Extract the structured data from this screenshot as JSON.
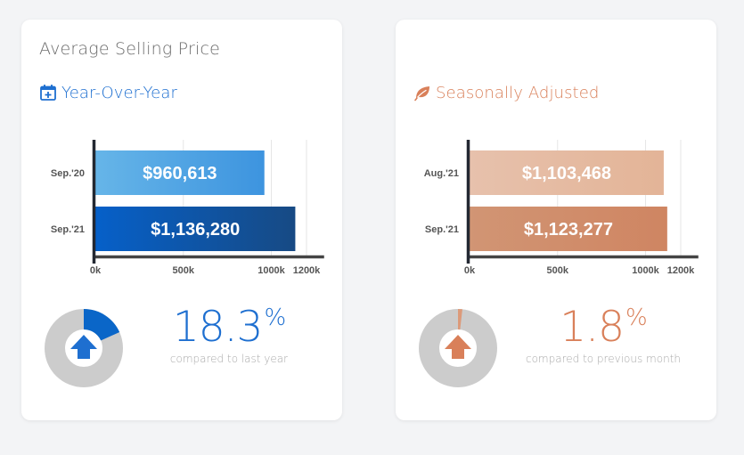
{
  "colors": {
    "background": "#f3f4f6",
    "card": "#ffffff",
    "blue_accent": "#1e6fd0",
    "orange_accent": "#d9805a",
    "donut_track": "#cccccc"
  },
  "cards": [
    {
      "title": "Average Selling Price",
      "subtitle": "Year-Over-Year",
      "subtitle_icon": "calendar-plus-icon",
      "stat": {
        "value": "18.3",
        "unit": "%",
        "caption": "compared to last year",
        "direction": "up",
        "direction_icon": "arrow-up-icon",
        "fraction": 0.183
      }
    },
    {
      "title": "",
      "subtitle": "Seasonally Adjusted",
      "subtitle_icon": "leaf-icon",
      "stat": {
        "value": "1.8",
        "unit": "%",
        "caption": "compared to previous month",
        "direction": "up",
        "direction_icon": "arrow-up-icon",
        "fraction": 0.018
      }
    }
  ],
  "chart_data": [
    {
      "type": "bar",
      "orientation": "horizontal",
      "title": "Year-Over-Year",
      "categories": [
        "Sep.'20",
        "Sep.'21"
      ],
      "values": [
        960613,
        1136280
      ],
      "value_labels": [
        "$960,613",
        "$1,136,280"
      ],
      "bar_colors": [
        [
          "#66b5e8",
          "#3d94df"
        ],
        [
          "#0660c9",
          "#174a84"
        ]
      ],
      "xticks": [
        0,
        500000,
        1000000,
        1200000
      ],
      "xtick_labels": [
        "0k",
        "500k",
        "1000k",
        "1200k"
      ],
      "xlim": [
        0,
        1300000
      ],
      "grid": true,
      "xlabel": "",
      "ylabel": ""
    },
    {
      "type": "bar",
      "orientation": "horizontal",
      "title": "Seasonally Adjusted",
      "categories": [
        "Aug.'21",
        "Sep.'21"
      ],
      "values": [
        1103468,
        1123277
      ],
      "value_labels": [
        "$1,103,468",
        "$1,123,277"
      ],
      "bar_colors": [
        [
          "#e7c1ac",
          "#e3b497"
        ],
        [
          "#d19574",
          "#cf8562"
        ]
      ],
      "xticks": [
        0,
        500000,
        1000000,
        1200000
      ],
      "xtick_labels": [
        "0k",
        "500k",
        "1000k",
        "1200k"
      ],
      "xlim": [
        0,
        1300000
      ],
      "grid": true,
      "xlabel": "",
      "ylabel": ""
    }
  ]
}
